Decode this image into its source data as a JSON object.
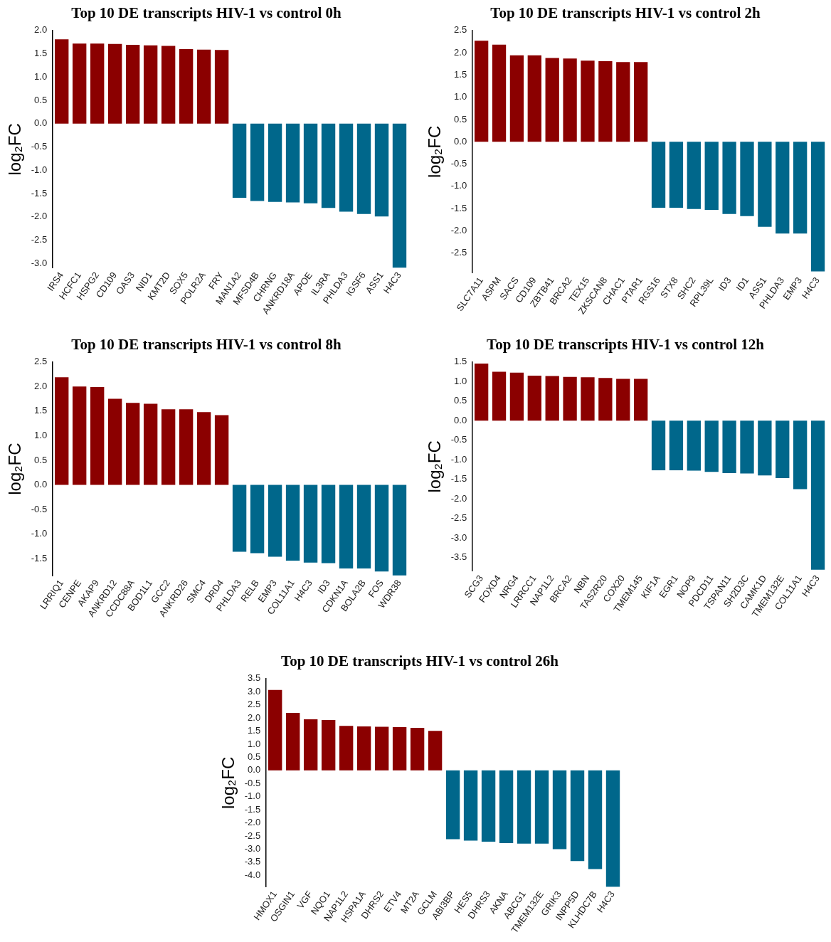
{
  "chart_data": [
    {
      "type": "bar",
      "title": "Top 10 DE transcripts HIV-1 vs control 0h",
      "ylabel": "log₂FC",
      "categories": [
        "IRS4",
        "HCFC1",
        "HSPG2",
        "CD109",
        "OAS3",
        "NID1",
        "KMT2D",
        "SOX5",
        "POLR2A",
        "FRY",
        "MAN1A2",
        "MFSD4B",
        "CHRNG",
        "ANKRD18A",
        "APOE",
        "IL3RA",
        "PHLDA3",
        "IGSF6",
        "ASS1",
        "H4C3"
      ],
      "values": [
        1.81,
        1.72,
        1.72,
        1.71,
        1.69,
        1.68,
        1.67,
        1.6,
        1.59,
        1.58,
        -1.59,
        -1.66,
        -1.68,
        -1.69,
        -1.71,
        -1.81,
        -1.89,
        -1.94,
        -1.99,
        -3.09
      ],
      "colors": [
        "#8b0000",
        "#8b0000",
        "#8b0000",
        "#8b0000",
        "#8b0000",
        "#8b0000",
        "#8b0000",
        "#8b0000",
        "#8b0000",
        "#8b0000",
        "#00678b",
        "#00678b",
        "#00678b",
        "#00678b",
        "#00678b",
        "#00678b",
        "#00678b",
        "#00678b",
        "#00678b",
        "#00678b"
      ],
      "ylim": [
        -3.1,
        2.0
      ],
      "yticks": [
        {
          "value": 2,
          "label": "2.0"
        },
        {
          "value": 1.5,
          "label": "1.5"
        },
        {
          "value": 1,
          "label": "1.0"
        },
        {
          "value": 0.5,
          "label": "0.5"
        },
        {
          "value": 0,
          "label": "0.0"
        },
        {
          "value": -0.5,
          "label": "-0.5"
        },
        {
          "value": -1,
          "label": "-1.0"
        },
        {
          "value": -1.5,
          "label": "-1.5"
        },
        {
          "value": -2,
          "label": "-2.0"
        },
        {
          "value": -2.5,
          "label": "-2.5"
        },
        {
          "value": -3,
          "label": "-3.0"
        }
      ],
      "grid": false,
      "legend": false
    },
    {
      "type": "bar",
      "title": "Top 10 DE transcripts HIV-1 vs control 2h",
      "ylabel": "log₂FC",
      "categories": [
        "SLC7A11",
        "ASPM",
        "SACS",
        "CD109",
        "ZBTB41",
        "BRCA2",
        "TEX15",
        "ZKSCAN8",
        "CHAC1",
        "PTAR1",
        "RGS16",
        "STX8",
        "SHC2",
        "RPL39L",
        "ID3",
        "ID1",
        "ASS1",
        "PHLDA3",
        "EMP3",
        "H4C3"
      ],
      "values": [
        2.27,
        2.18,
        1.94,
        1.94,
        1.88,
        1.87,
        1.82,
        1.81,
        1.79,
        1.79,
        -1.48,
        -1.48,
        -1.51,
        -1.53,
        -1.62,
        -1.67,
        -1.91,
        -2.06,
        -2.06,
        -2.91
      ],
      "colors": [
        "#8b0000",
        "#8b0000",
        "#8b0000",
        "#8b0000",
        "#8b0000",
        "#8b0000",
        "#8b0000",
        "#8b0000",
        "#8b0000",
        "#8b0000",
        "#00678b",
        "#00678b",
        "#00678b",
        "#00678b",
        "#00678b",
        "#00678b",
        "#00678b",
        "#00678b",
        "#00678b",
        "#00678b"
      ],
      "ylim": [
        -2.95,
        2.5
      ],
      "yticks": [
        {
          "value": 2.5,
          "label": "2.5"
        },
        {
          "value": 2,
          "label": "2.0"
        },
        {
          "value": 1.5,
          "label": "1.5"
        },
        {
          "value": 1,
          "label": "1.0"
        },
        {
          "value": 0.5,
          "label": "0.5"
        },
        {
          "value": 0,
          "label": "0.0"
        },
        {
          "value": -0.5,
          "label": "-0.5"
        },
        {
          "value": -1,
          "label": "-1.0"
        },
        {
          "value": -1.5,
          "label": "-1.5"
        },
        {
          "value": -2,
          "label": "-2.0"
        },
        {
          "value": -2.5,
          "label": "-2.5"
        }
      ],
      "grid": false,
      "legend": false
    },
    {
      "type": "bar",
      "title": "Top 10 DE transcripts HIV-1 vs control 8h",
      "ylabel": "log₂FC",
      "categories": [
        "LRRIQ1",
        "CENPE",
        "AKAP9",
        "ANKRD12",
        "CCDC88A",
        "BOD1L1",
        "GCC2",
        "ANKRD26",
        "SMC4",
        "DRD4",
        "PHLDA3",
        "RELB",
        "EMP3",
        "COL11A1",
        "H4C3",
        "ID3",
        "CDKN1A",
        "BOLA2B",
        "FOS",
        "WDR38"
      ],
      "values": [
        2.19,
        2.0,
        1.99,
        1.75,
        1.67,
        1.65,
        1.54,
        1.54,
        1.48,
        1.42,
        -1.36,
        -1.39,
        -1.46,
        -1.54,
        -1.58,
        -1.59,
        -1.7,
        -1.7,
        -1.76,
        -1.84
      ],
      "colors": [
        "#8b0000",
        "#8b0000",
        "#8b0000",
        "#8b0000",
        "#8b0000",
        "#8b0000",
        "#8b0000",
        "#8b0000",
        "#8b0000",
        "#8b0000",
        "#00678b",
        "#00678b",
        "#00678b",
        "#00678b",
        "#00678b",
        "#00678b",
        "#00678b",
        "#00678b",
        "#00678b",
        "#00678b"
      ],
      "ylim": [
        -1.85,
        2.5
      ],
      "yticks": [
        {
          "value": 2.5,
          "label": "2.5"
        },
        {
          "value": 2,
          "label": "2.0"
        },
        {
          "value": 1.5,
          "label": "1.5"
        },
        {
          "value": 1,
          "label": "1.0"
        },
        {
          "value": 0.5,
          "label": "0.5"
        },
        {
          "value": 0,
          "label": "0.0"
        },
        {
          "value": -0.5,
          "label": "-0.5"
        },
        {
          "value": -1,
          "label": "-1.0"
        },
        {
          "value": -1.5,
          "label": "-1.5"
        }
      ],
      "grid": false,
      "legend": false
    },
    {
      "type": "bar",
      "title": "Top 10 DE transcripts HIV-1 vs control 12h",
      "ylabel": "log₂FC",
      "categories": [
        "SCG3",
        "FOXD4",
        "NRG4",
        "LRRCC1",
        "NAP1L2",
        "BRCA2",
        "NBN",
        "TAS2R20",
        "COX20",
        "TMEM145",
        "KIF1A",
        "EGR1",
        "NOP9",
        "PDCD11",
        "TSPAN11",
        "SH2D3C",
        "CAMK1D",
        "TMEM132E",
        "COL11A1",
        "H4C3"
      ],
      "values": [
        1.46,
        1.25,
        1.23,
        1.15,
        1.14,
        1.12,
        1.11,
        1.09,
        1.07,
        1.07,
        -1.27,
        -1.27,
        -1.28,
        -1.31,
        -1.34,
        -1.35,
        -1.4,
        -1.47,
        -1.75,
        -3.81
      ],
      "colors": [
        "#8b0000",
        "#8b0000",
        "#8b0000",
        "#8b0000",
        "#8b0000",
        "#8b0000",
        "#8b0000",
        "#8b0000",
        "#8b0000",
        "#8b0000",
        "#00678b",
        "#00678b",
        "#00678b",
        "#00678b",
        "#00678b",
        "#00678b",
        "#00678b",
        "#00678b",
        "#00678b",
        "#00678b"
      ],
      "ylim": [
        -3.85,
        1.5
      ],
      "yticks": [
        {
          "value": 1.5,
          "label": "1.5"
        },
        {
          "value": 1,
          "label": "1.0"
        },
        {
          "value": 0.5,
          "label": "0.5"
        },
        {
          "value": 0,
          "label": "0.0"
        },
        {
          "value": -0.5,
          "label": "-0.5"
        },
        {
          "value": -1,
          "label": "-1.0"
        },
        {
          "value": -1.5,
          "label": "-1.5"
        },
        {
          "value": -2,
          "label": "-2.0"
        },
        {
          "value": -2.5,
          "label": "-2.5"
        },
        {
          "value": -3,
          "label": "-3.0"
        },
        {
          "value": -3.5,
          "label": "-3.5"
        }
      ],
      "grid": false,
      "legend": false
    },
    {
      "type": "bar",
      "title": "Top 10 DE transcripts HIV-1 vs control 26h",
      "ylabel": "log₂FC",
      "categories": [
        "HMOX1",
        "OSGIN1",
        "VGF",
        "NQO1",
        "NAP1L2",
        "HSPA1A",
        "DHRS2",
        "ETV4",
        "MT2A",
        "GCLM",
        "ABI3BP",
        "HES5",
        "DHRS3",
        "AKNA",
        "ABCG1",
        "TMEM132E",
        "GRIK3",
        "INPP5D",
        "KLHDC7B",
        "H4C3"
      ],
      "values": [
        3.07,
        2.19,
        1.95,
        1.92,
        1.7,
        1.68,
        1.66,
        1.65,
        1.62,
        1.51,
        -2.62,
        -2.68,
        -2.72,
        -2.77,
        -2.79,
        -2.79,
        -3.0,
        -3.46,
        -3.76,
        -4.44
      ],
      "colors": [
        "#8b0000",
        "#8b0000",
        "#8b0000",
        "#8b0000",
        "#8b0000",
        "#8b0000",
        "#8b0000",
        "#8b0000",
        "#8b0000",
        "#8b0000",
        "#00678b",
        "#00678b",
        "#00678b",
        "#00678b",
        "#00678b",
        "#00678b",
        "#00678b",
        "#00678b",
        "#00678b",
        "#00678b"
      ],
      "ylim": [
        -4.45,
        3.5
      ],
      "yticks": [
        {
          "value": 3.5,
          "label": "3.5"
        },
        {
          "value": 3,
          "label": "3.0"
        },
        {
          "value": 2.5,
          "label": "2.5"
        },
        {
          "value": 2,
          "label": "2.0"
        },
        {
          "value": 1.5,
          "label": "1.5"
        },
        {
          "value": 1,
          "label": "1.0"
        },
        {
          "value": 0.5,
          "label": "0.5"
        },
        {
          "value": 0,
          "label": "0.0"
        },
        {
          "value": -0.5,
          "label": "-0.5"
        },
        {
          "value": -1,
          "label": "-1.0"
        },
        {
          "value": -1.5,
          "label": "-1.5"
        },
        {
          "value": -2,
          "label": "-2.0"
        },
        {
          "value": -2.5,
          "label": "-2.5"
        },
        {
          "value": -3,
          "label": "-3.0"
        },
        {
          "value": -3.5,
          "label": "-3.5"
        },
        {
          "value": -4,
          "label": "-4.0"
        }
      ],
      "grid": false,
      "legend": false
    }
  ]
}
